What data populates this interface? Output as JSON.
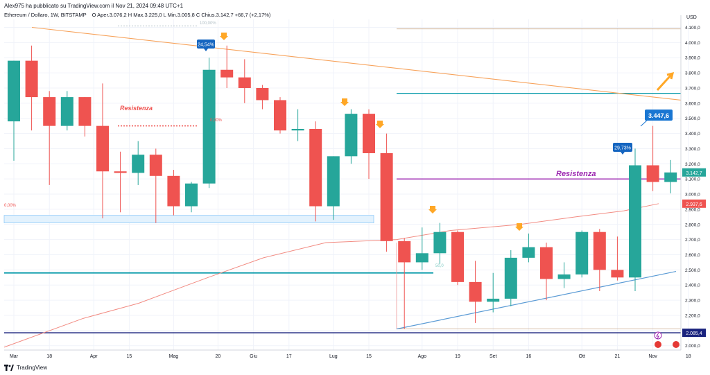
{
  "header": {
    "published": "Alex975 ha pubblicato su TradingView.com il Nov 21, 2024 09:48 UTC+1",
    "symbol": "Ethereum / Dollaro, 1W, BITSTAMP",
    "ohlc": "O Aper.3.076,2  H Max.3.225,0  L Min.3.005,8  C Chius.3.142,7 +66,7 (+2,17%)"
  },
  "footer": {
    "brand": "TradingView"
  },
  "colors": {
    "up": "#26a69a",
    "down": "#ef5350",
    "trend": "#f7a35c",
    "support": "#2196f3",
    "level": "#0097a7",
    "resist": "#9c27b0",
    "ma": "#f28b82"
  },
  "chart_data": {
    "type": "candlestick",
    "currency": "USD",
    "y_ticks": [
      "2.000,0",
      "2.100,0",
      "2.200,0",
      "2.300,0",
      "2.400,0",
      "2.500,0",
      "2.600,0",
      "2.700,0",
      "2.800,0",
      "2.900,0",
      "3.000,0",
      "3.100,0",
      "3.200,0",
      "3.300,0",
      "3.400,0",
      "3.500,0",
      "3.600,0",
      "3.700,0",
      "3.800,0",
      "3.900,0",
      "4.000,0",
      "4.100,0"
    ],
    "y_tick_values": [
      2000,
      2100,
      2200,
      2300,
      2400,
      2500,
      2600,
      2700,
      2800,
      2900,
      3000,
      3100,
      3200,
      3300,
      3400,
      3500,
      3600,
      3700,
      3800,
      3900,
      4000,
      4100
    ],
    "ylim": [
      1950,
      4200
    ],
    "x_labels": [
      "Mar",
      "18",
      "Apr",
      "15",
      "Mag",
      "20",
      "Giu",
      "17",
      "Lug",
      "15",
      "Ago",
      "19",
      "Set",
      "16",
      "Ott",
      "21",
      "Nov",
      "18"
    ],
    "x_label_index": [
      0,
      2,
      4.5,
      6.5,
      9,
      11.5,
      13.5,
      15.5,
      18,
      20,
      23,
      25,
      27,
      29,
      32,
      34,
      36,
      38
    ],
    "candles": [
      [
        3480,
        3880,
        3220,
        3880
      ],
      [
        3880,
        3980,
        3420,
        3640
      ],
      [
        3640,
        3680,
        3060,
        3450
      ],
      [
        3450,
        3680,
        3420,
        3640
      ],
      [
        3640,
        3640,
        3380,
        3450
      ],
      [
        3450,
        3730,
        2840,
        3150
      ],
      [
        3150,
        3280,
        2880,
        3140
      ],
      [
        3140,
        3350,
        3060,
        3260
      ],
      [
        3260,
        3300,
        2810,
        3120
      ],
      [
        3120,
        3160,
        2860,
        2920
      ],
      [
        2920,
        3080,
        2880,
        3070
      ],
      [
        3070,
        3900,
        3040,
        3820
      ],
      [
        3820,
        3980,
        3700,
        3770
      ],
      [
        3770,
        3890,
        3600,
        3700
      ],
      [
        3700,
        3720,
        3560,
        3620
      ],
      [
        3620,
        3640,
        3400,
        3420
      ],
      [
        3420,
        3560,
        3350,
        3430
      ],
      [
        3430,
        3480,
        2820,
        2920
      ],
      [
        2920,
        3250,
        2830,
        3250
      ],
      [
        3250,
        3560,
        3200,
        3530
      ],
      [
        3530,
        3560,
        3100,
        3270
      ],
      [
        3270,
        3400,
        2620,
        2690
      ],
      [
        2690,
        2710,
        2110,
        2550
      ],
      [
        2550,
        2780,
        2500,
        2610
      ],
      [
        2610,
        2810,
        2540,
        2750
      ],
      [
        2750,
        2760,
        2400,
        2420
      ],
      [
        2420,
        2560,
        2150,
        2290
      ],
      [
        2290,
        2480,
        2220,
        2310
      ],
      [
        2310,
        2630,
        2260,
        2580
      ],
      [
        2580,
        2740,
        2550,
        2650
      ],
      [
        2650,
        2680,
        2300,
        2440
      ],
      [
        2440,
        2550,
        2380,
        2470
      ],
      [
        2470,
        2760,
        2450,
        2750
      ],
      [
        2750,
        2770,
        2360,
        2500
      ],
      [
        2500,
        2720,
        2430,
        2450
      ],
      [
        2450,
        3300,
        2360,
        3190
      ],
      [
        3190,
        3450,
        3020,
        3080
      ],
      [
        3080,
        3225,
        3005,
        3143
      ]
    ],
    "annotations": {
      "resistance_left": "Resistenza",
      "resistance_right": "Resistenza",
      "pct_1": "24,54%",
      "pct_2": "29,73%",
      "callout": "3.447,6",
      "fib_100": "100,00%",
      "fib_50": "50,0",
      "fib_0_left": "0,00%",
      "fib_0_mid": "0,00%",
      "price_now": "3.142,7",
      "price_ma": "2.937,6",
      "price_support": "2.085,4"
    }
  }
}
